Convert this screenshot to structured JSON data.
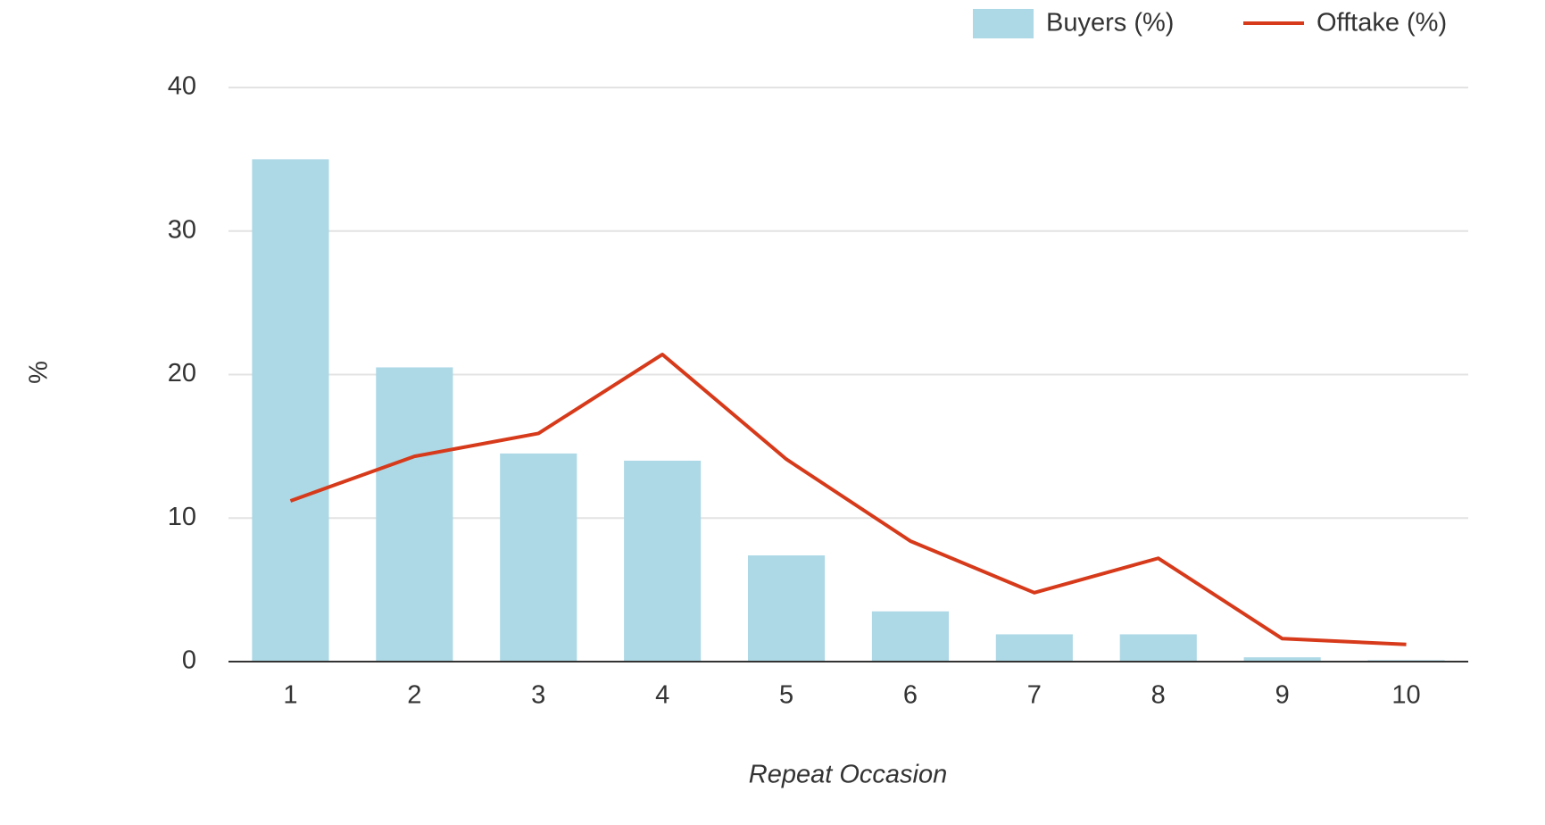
{
  "chart_data": {
    "type": "bar_line",
    "x_label": "Repeat Occasion",
    "y_label": "%",
    "categories": [
      "1",
      "2",
      "3",
      "4",
      "5",
      "6",
      "7",
      "8",
      "9",
      "10"
    ],
    "series": [
      {
        "name": "Buyers (%)",
        "type": "bar",
        "color": "#add8e6",
        "values": [
          35.0,
          20.5,
          14.5,
          14.0,
          7.4,
          3.5,
          1.9,
          1.9,
          0.3,
          0.1
        ]
      },
      {
        "name": "Offtake (%)",
        "type": "line",
        "color": "#d63a1a",
        "values": [
          11.2,
          14.3,
          15.9,
          21.4,
          14.1,
          8.4,
          4.8,
          7.2,
          1.6,
          1.2
        ]
      }
    ],
    "ylim": [
      0,
      40
    ],
    "yticks": [
      0,
      10,
      20,
      30,
      40
    ],
    "grid": true,
    "legend": "top-right"
  }
}
